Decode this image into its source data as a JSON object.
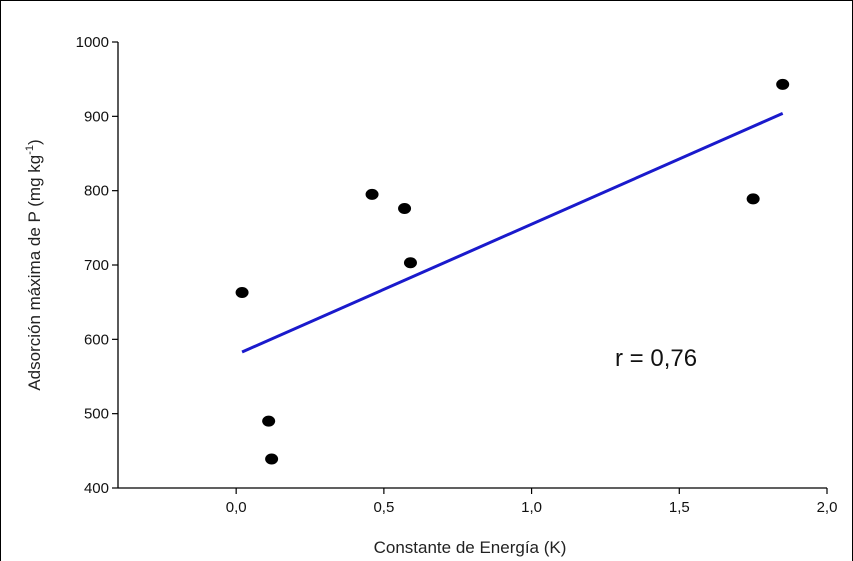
{
  "chart_data": {
    "type": "scatter",
    "title": "",
    "xlabel": "Constante de Energía (K)",
    "ylabel": "Adsorción máxima de P (mg kg-1)",
    "ylabel_main": "Adsorción máxima de P (mg kg",
    "ylabel_sup": "-1",
    "ylabel_close": ")",
    "xlim": [
      -0.4,
      2.0
    ],
    "ylim": [
      400,
      1000
    ],
    "xticks": [
      0.0,
      0.5,
      1.0,
      1.5,
      2.0
    ],
    "xtick_labels": [
      "0,0",
      "0,5",
      "1,0",
      "1,5",
      "2,0"
    ],
    "yticks": [
      400,
      500,
      600,
      700,
      800,
      900,
      1000
    ],
    "ytick_labels": [
      "400",
      "500",
      "600",
      "700",
      "800",
      "900",
      "1000"
    ],
    "grid": false,
    "points": [
      {
        "x": 0.02,
        "y": 663
      },
      {
        "x": 0.11,
        "y": 490
      },
      {
        "x": 0.12,
        "y": 439
      },
      {
        "x": 0.46,
        "y": 795
      },
      {
        "x": 0.57,
        "y": 776
      },
      {
        "x": 0.59,
        "y": 703
      },
      {
        "x": 1.75,
        "y": 789
      },
      {
        "x": 1.85,
        "y": 943
      }
    ],
    "trendline": {
      "x": [
        0.02,
        1.85
      ],
      "y": [
        583,
        904
      ],
      "color": "#1a1acc"
    },
    "point_color": "#000000",
    "annotation": "r = 0,76"
  }
}
